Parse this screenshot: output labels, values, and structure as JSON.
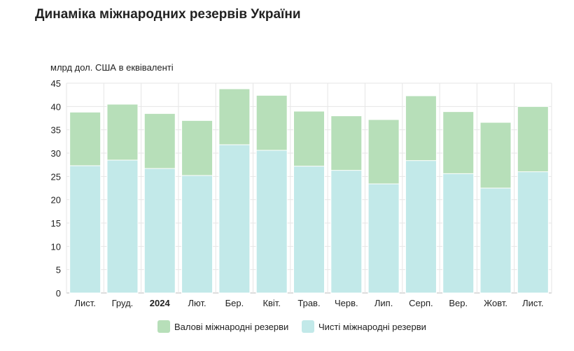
{
  "chart_data": {
    "type": "bar",
    "title": "Динаміка міжнародних резервів України",
    "ylabel": "млрд дол. США в еквіваленті",
    "ylim": [
      0,
      45
    ],
    "yticks": [
      0,
      5,
      10,
      15,
      20,
      25,
      30,
      35,
      40,
      45
    ],
    "grid": true,
    "legend_position": "bottom",
    "categories": [
      "Лист.",
      "Груд.",
      "2024",
      "Лют.",
      "Бер.",
      "Квіт.",
      "Трав.",
      "Черв.",
      "Лип.",
      "Серп.",
      "Вер.",
      "Жовт.",
      "Лист."
    ],
    "bold_categories": [
      "2024"
    ],
    "series": [
      {
        "name": "Валові міжнародні резерви",
        "color": "#b7dfb9",
        "values": [
          38.8,
          40.5,
          38.5,
          37.0,
          43.8,
          42.4,
          39.0,
          38.0,
          37.2,
          42.3,
          38.9,
          36.6,
          40.0
        ]
      },
      {
        "name": "Чисті міжнародні резерви",
        "color": "#c2e9e9",
        "values": [
          27.3,
          28.5,
          26.7,
          25.2,
          31.8,
          30.6,
          27.2,
          26.3,
          23.4,
          28.4,
          25.6,
          22.5,
          26.0
        ]
      }
    ]
  }
}
